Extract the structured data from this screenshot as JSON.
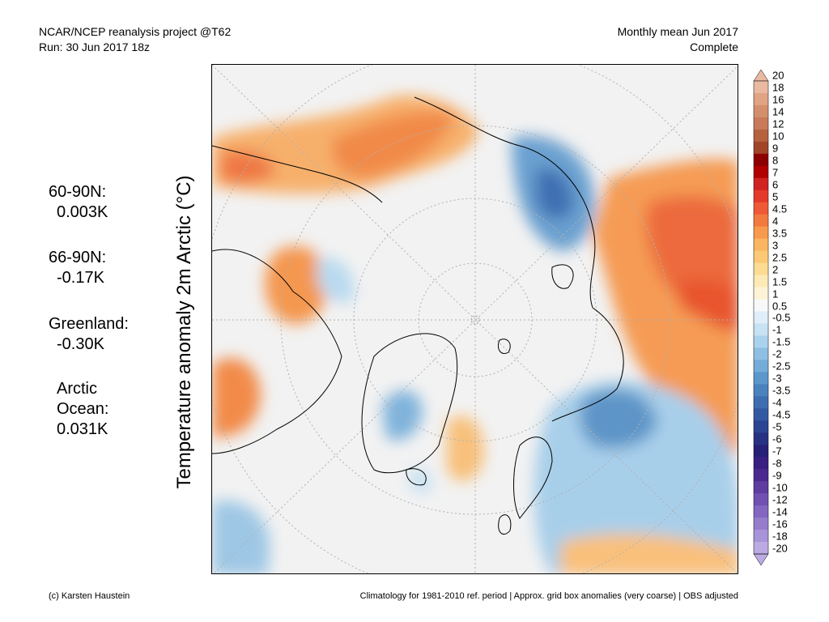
{
  "header": {
    "project": "NCAR/NCEP reanalysis project @T62",
    "run": "Run: 30 Jun 2017 18z",
    "period": "Monthly mean Jun 2017",
    "status": "Complete"
  },
  "axis_label": "Temperature anomaly 2m Arctic (°C)",
  "stats": [
    {
      "name": "60-90N:",
      "value": "0.003K"
    },
    {
      "name": "66-90N:",
      "value": "-0.17K"
    },
    {
      "name": "Greenland:",
      "value": "-0.30K"
    },
    {
      "name": "Arctic",
      "name2": "Ocean:",
      "value": "0.031K"
    }
  ],
  "colorbar": {
    "labels": [
      "20",
      "18",
      "16",
      "14",
      "12",
      "10",
      "9",
      "8",
      "7",
      "6",
      "5",
      "4.5",
      "4",
      "3.5",
      "3",
      "2.5",
      "2",
      "1.5",
      "1",
      "0.5",
      "-0.5",
      "-1",
      "-1.5",
      "-2",
      "-2.5",
      "-3",
      "-3.5",
      "-4",
      "-4.5",
      "-5",
      "-6",
      "-7",
      "-8",
      "-9",
      "-10",
      "-12",
      "-14",
      "-16",
      "-18",
      "-20"
    ],
    "colors": [
      "#e9b9a1",
      "#e0a383",
      "#d38f6c",
      "#c87a5a",
      "#b6623f",
      "#a04528",
      "#8c0000",
      "#b00000",
      "#d12222",
      "#e33a2b",
      "#ee5a35",
      "#f27a3f",
      "#f79a4d",
      "#f9b560",
      "#fbc975",
      "#fcdc93",
      "#fdeab5",
      "#fdf3d6",
      "#f8f8f8",
      "#dfeef8",
      "#c6e2f3",
      "#aad2ec",
      "#8ebfe2",
      "#74acd7",
      "#5b97cb",
      "#4a82be",
      "#3e6eb0",
      "#335aa1",
      "#2c4592",
      "#283283",
      "#262076",
      "#3a1f82",
      "#4a2a90",
      "#5e3ca0",
      "#7050b0",
      "#8266c0",
      "#957dcc",
      "#a894d8",
      "#bbabe2"
    ]
  },
  "footer": {
    "credit": "(c) Karsten Haustein",
    "note": "Climatology for 1981-2010 ref. period | Approx. grid box anomalies (very coarse) | OBS adjusted"
  }
}
